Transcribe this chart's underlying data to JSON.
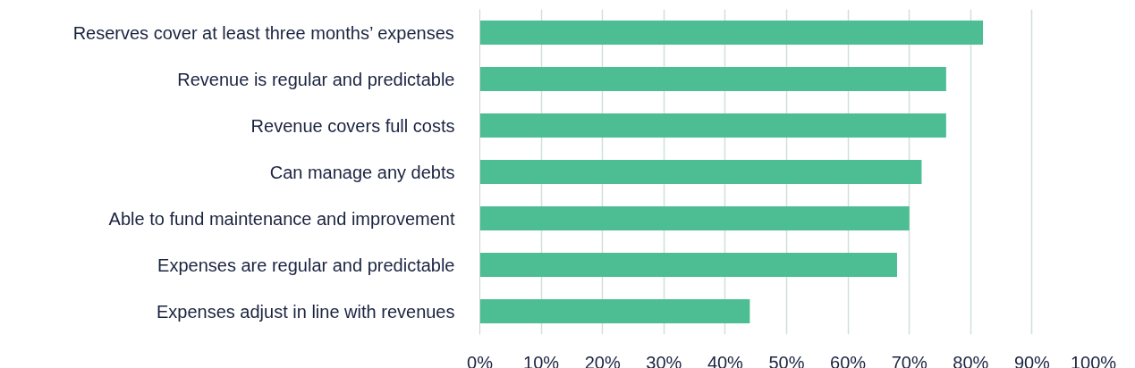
{
  "chart_data": {
    "type": "bar",
    "orientation": "horizontal",
    "categories": [
      "Reserves cover at least three months’ expenses",
      "Revenue is regular and predictable",
      "Revenue covers full costs",
      "Can manage any debts",
      "Able to fund maintenance and improvement",
      "Expenses are regular and predictable",
      "Expenses adjust in line with revenues"
    ],
    "values": [
      82,
      76,
      76,
      72,
      70,
      68,
      44
    ],
    "color": "#4dbd94",
    "xlim": [
      0,
      100
    ],
    "xticks": [
      {
        "value": 0,
        "label": "0%"
      },
      {
        "value": 10,
        "label": "10%"
      },
      {
        "value": 20,
        "label": "20%"
      },
      {
        "value": 30,
        "label": "30%"
      },
      {
        "value": 40,
        "label": "40%"
      },
      {
        "value": 50,
        "label": "50%"
      },
      {
        "value": 60,
        "label": "60%"
      },
      {
        "value": 70,
        "label": "70%"
      },
      {
        "value": 80,
        "label": "80%"
      },
      {
        "value": 90,
        "label": "90%"
      },
      {
        "value": 100,
        "label": "100%"
      }
    ],
    "grid": "x"
  }
}
